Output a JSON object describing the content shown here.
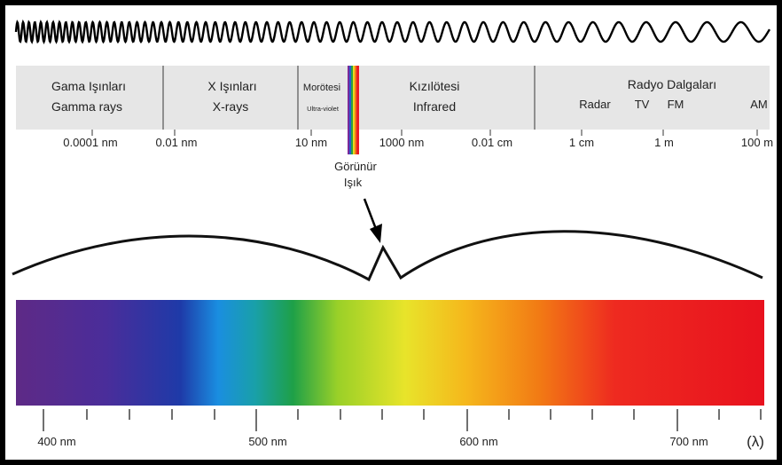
{
  "bands": [
    {
      "tr": "Gama Işınları",
      "en": "Gamma rays"
    },
    {
      "tr": "X Işınları",
      "en": "X-rays"
    },
    {
      "tr": "Morötesi",
      "en": "Ultra-violet"
    },
    {
      "tr": "Kızılötesi",
      "en": "Infrared"
    },
    {
      "tr": "Radyo Dalgaları"
    }
  ],
  "radio_sub": [
    "Radar",
    "TV",
    "FM",
    "AM"
  ],
  "wavelength_ticks": [
    "0.0001 nm",
    "0.01 nm",
    "10 nm",
    "1000 nm",
    "0.01 cm",
    "1 cm",
    "1 m",
    "100 m"
  ],
  "visible_label": {
    "line1": "Görünür",
    "line2": "Işık"
  },
  "spectrum_ticks": [
    "400 nm",
    "500 nm",
    "600 nm",
    "700 nm"
  ],
  "lambda_symbol": "(λ)",
  "colors": {
    "band_bg": "#e6e6e6",
    "violet": "#6a2a8c",
    "blue": "#1a5cc8",
    "green": "#1aa040",
    "yellow": "#f0e020",
    "orange": "#f08a10",
    "red": "#ee1c24"
  }
}
